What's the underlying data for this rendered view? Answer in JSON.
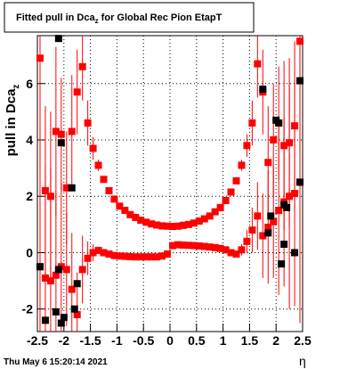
{
  "chart_data": {
    "type": "scatter",
    "title_parts": [
      "Fitted pull in Dca",
      "z",
      " for Global Rec Pion EtapT"
    ],
    "ylabel_parts": [
      "pull in Dca",
      "z"
    ],
    "xlabel": "η",
    "footer": "Thu May  6 15:20:14 2021",
    "xlim": [
      -2.5,
      2.5
    ],
    "ylim": [
      -2.8,
      7.7
    ],
    "xticks": [
      -2.5,
      -2,
      -1.5,
      -1,
      -0.5,
      0,
      0.5,
      1,
      1.5,
      2,
      2.5
    ],
    "yticks": [
      -2,
      0,
      2,
      4,
      6
    ],
    "grid": true,
    "series": [
      {
        "color": "#000000",
        "x": [
          -2.45,
          -2.35,
          -2.1,
          -2.05,
          -2.0,
          -1.85,
          -2.15,
          -2.05,
          -2.1,
          -1.8,
          -1.75,
          1.75,
          1.85,
          1.9,
          2.0,
          2.05,
          2.1,
          2.15,
          2.2,
          2.45,
          2.45,
          2.35,
          2.15
        ],
        "values": [
          -0.5,
          -2.4,
          7.6,
          3.9,
          -2.3,
          2.3,
          -2.1,
          -2.5,
          -0.6,
          -2.0,
          -1.1,
          5.8,
          0.7,
          1.3,
          4.7,
          4.6,
          -0.4,
          0.3,
          1.6,
          6.1,
          2.5,
          0.0,
          1.7
        ]
      },
      {
        "color": "#ff0000",
        "x": [
          -2.45,
          -2.35,
          -2.25,
          -2.15,
          -2.05,
          -1.95,
          -1.85,
          -1.75,
          -1.65,
          -1.55,
          -1.45,
          -1.35,
          -1.25,
          -1.15,
          -1.05,
          -0.95,
          -0.85,
          -0.75,
          -0.65,
          -0.55,
          -0.45,
          -0.35,
          -0.25,
          -0.15,
          -0.05,
          0.05,
          0.15,
          0.25,
          0.35,
          0.45,
          0.55,
          0.65,
          0.75,
          0.85,
          0.95,
          1.05,
          1.15,
          1.25,
          1.35,
          1.45,
          1.55,
          1.65,
          1.75,
          1.85,
          1.95,
          2.05,
          2.15,
          2.25,
          2.35,
          2.45
        ],
        "values": [
          6.9,
          2.2,
          2.0,
          4.3,
          4.2,
          2.3,
          4.3,
          5.7,
          6.6,
          4.6,
          3.7,
          3.1,
          2.6,
          2.2,
          1.9,
          1.65,
          1.5,
          1.35,
          1.25,
          1.15,
          1.08,
          1.02,
          0.98,
          0.95,
          0.94,
          0.93,
          0.94,
          0.97,
          1.0,
          1.05,
          1.12,
          1.2,
          1.3,
          1.45,
          1.6,
          1.85,
          2.15,
          2.55,
          3.1,
          3.8,
          4.6,
          6.7,
          5.7,
          3.2,
          4.0,
          4.6,
          3.8,
          3.9,
          4.5,
          7.5
        ],
        "errors": [
          4,
          3,
          3,
          3,
          2,
          2,
          2,
          1.5,
          1.2,
          0.8,
          0.4,
          0.2,
          0.1,
          0.08,
          0.06,
          0.05,
          0.05,
          0.05,
          0.05,
          0.05,
          0.05,
          0.05,
          0.05,
          0.05,
          0.05,
          0.05,
          0.05,
          0.05,
          0.05,
          0.05,
          0.05,
          0.05,
          0.05,
          0.05,
          0.05,
          0.06,
          0.08,
          0.1,
          0.2,
          0.4,
          0.8,
          1.2,
          1.5,
          2,
          2,
          2,
          3,
          3,
          3,
          4
        ]
      },
      {
        "color": "#ff0000",
        "x": [
          -2.45,
          -2.35,
          -2.25,
          -2.15,
          -2.05,
          -1.95,
          -1.85,
          -1.75,
          -1.65,
          -1.55,
          -1.45,
          -1.35,
          -1.25,
          -1.15,
          -1.05,
          -0.95,
          -0.85,
          -0.75,
          -0.65,
          -0.55,
          -0.45,
          -0.35,
          -0.25,
          -0.15,
          -0.05,
          0.05,
          0.15,
          0.25,
          0.35,
          0.45,
          0.55,
          0.65,
          0.75,
          0.85,
          0.95,
          1.05,
          1.15,
          1.25,
          1.35,
          1.45,
          1.55,
          1.65,
          1.75,
          1.85,
          1.95,
          2.05,
          2.15,
          2.25,
          2.35,
          2.45
        ],
        "values": [
          -0.5,
          -0.9,
          -1.0,
          -0.8,
          -0.5,
          -0.6,
          -1.3,
          -2.2,
          -0.6,
          -0.2,
          0.0,
          0.08,
          0.0,
          -0.05,
          -0.1,
          -0.12,
          -0.13,
          -0.14,
          -0.15,
          -0.15,
          -0.15,
          -0.15,
          -0.15,
          -0.12,
          -0.05,
          0.25,
          0.28,
          0.27,
          0.26,
          0.25,
          0.24,
          0.22,
          0.2,
          0.18,
          0.15,
          0.1,
          0.0,
          -0.05,
          0.1,
          0.4,
          0.8,
          1.3,
          0.6,
          0.9,
          1.1,
          1.5,
          1.8,
          2.0,
          2.1,
          2.5
        ],
        "errors": [
          5,
          4,
          4,
          3,
          3,
          2,
          2,
          1.5,
          1.2,
          0.6,
          0.3,
          0.1,
          0.05,
          0.04,
          0.03,
          0.03,
          0.03,
          0.03,
          0.03,
          0.03,
          0.03,
          0.03,
          0.03,
          0.03,
          0.03,
          0.03,
          0.03,
          0.03,
          0.03,
          0.03,
          0.03,
          0.03,
          0.03,
          0.03,
          0.03,
          0.04,
          0.05,
          0.1,
          0.2,
          0.4,
          0.8,
          1.2,
          1.5,
          2,
          2,
          3,
          3,
          4,
          4,
          5
        ]
      }
    ]
  }
}
